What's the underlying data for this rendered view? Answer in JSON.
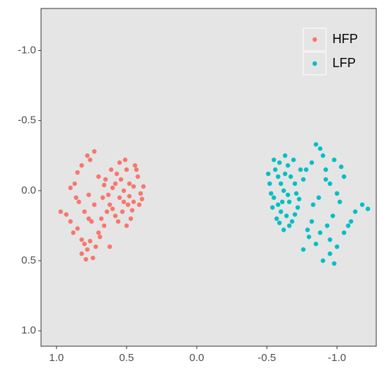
{
  "chart_data": {
    "type": "scatter",
    "xlim": [
      1.11,
      -1.28
    ],
    "ylim": [
      1.11,
      -1.3
    ],
    "xticks": [
      {
        "value": 1,
        "label": "1.0"
      },
      0.5,
      {
        "value": 0,
        "label": "0.0"
      },
      -0.5,
      {
        "value": -1,
        "label": "-1.0"
      }
    ],
    "yticks": [
      {
        "value": -1,
        "label": "-1.0"
      },
      -0.5,
      {
        "value": 0,
        "label": "0.0"
      },
      0.5,
      {
        "value": 1,
        "label": "1.0"
      }
    ],
    "legend": "top-right",
    "series": [
      {
        "name": "HFP",
        "color": "#F8766D",
        "x": [
          0.52,
          0.48,
          0.55,
          0.6,
          0.45,
          0.5,
          0.57,
          0.62,
          0.42,
          0.4,
          0.65,
          0.53,
          0.47,
          0.58,
          0.63,
          0.44,
          0.51,
          0.55,
          0.38,
          0.67,
          0.6,
          0.49,
          0.54,
          0.46,
          0.41,
          0.56,
          0.5,
          0.61,
          0.43,
          0.66,
          0.52,
          0.58,
          0.48,
          0.45,
          0.64,
          0.39,
          0.97,
          0.93,
          0.9,
          0.88,
          0.85,
          0.82,
          0.8,
          0.78,
          0.76,
          0.74,
          0.72,
          0.82,
          0.79,
          0.7,
          0.66,
          0.62,
          0.68,
          0.75,
          0.8,
          0.73,
          0.84,
          0.77,
          0.87,
          0.85,
          0.82,
          0.78,
          0.73,
          0.76,
          0.7,
          0.86,
          0.9,
          0.77,
          0.69
        ],
        "values": [
          0,
          -0.05,
          0.05,
          -0.02,
          0.08,
          -0.15,
          -0.12,
          0.1,
          -0.1,
          0.02,
          -0.08,
          0.15,
          0.2,
          0.18,
          0.03,
          -0.18,
          -0.22,
          -0.2,
          -0.03,
          0.05,
          0.13,
          0.1,
          -0.08,
          0.14,
          0.1,
          0.22,
          0.25,
          -0.15,
          -0.15,
          -0.04,
          0.08,
          -0.05,
          0.04,
          -0.03,
          0.15,
          0.06,
          0.15,
          0.17,
          0.22,
          0.3,
          0.27,
          0.35,
          0.38,
          0.42,
          0.36,
          0.48,
          0.4,
          0.45,
          0.49,
          0.3,
          0.25,
          0.4,
          0.2,
          0.22,
          0.15,
          0.1,
          0.08,
          0.03,
          -0.05,
          -0.13,
          -0.18,
          -0.25,
          -0.28,
          -0.22,
          -0.1,
          0.05,
          -0.02,
          0.2,
          0.33
        ]
      },
      {
        "name": "LFP",
        "color": "#00BFC4",
        "x": [
          -0.62,
          -0.58,
          -0.66,
          -0.55,
          -0.7,
          -0.6,
          -0.65,
          -0.52,
          -0.72,
          -0.57,
          -0.68,
          -0.63,
          -0.54,
          -0.74,
          -0.59,
          -0.67,
          -0.61,
          -0.56,
          -0.71,
          -0.64,
          -0.53,
          -0.69,
          -0.6,
          -0.66,
          -0.58,
          -0.73,
          -0.63,
          -0.55,
          -0.7,
          -0.62,
          -0.76,
          -0.65,
          -0.59,
          -0.51,
          -0.78,
          -0.82,
          -0.85,
          -0.88,
          -0.9,
          -0.92,
          -0.95,
          -1,
          -1.05,
          -1.02,
          -0.97,
          -0.93,
          -0.88,
          -0.85,
          -0.8,
          -0.76,
          -0.9,
          -0.95,
          -0.98,
          -1,
          -1.05,
          -1.08,
          -1.13,
          -1.18,
          -1.22,
          -1.1,
          -0.95,
          -0.83,
          -0.87,
          -0.92,
          -1.03,
          -0.98,
          -0.82,
          -0.79
        ],
        "values": [
          0,
          -0.1,
          0.08,
          0.05,
          -0.05,
          0.15,
          -0.18,
          -0.05,
          0.12,
          0.2,
          0.22,
          -0.25,
          0.12,
          -0.15,
          -0.2,
          -0.1,
          0.08,
          -0.15,
          0.02,
          0.18,
          0.02,
          -0.22,
          -0.05,
          0.25,
          0.1,
          0.06,
          -0.12,
          -0.22,
          0.17,
          0.28,
          -0.08,
          0.03,
          0.23,
          -0.12,
          -0.15,
          -0.2,
          -0.33,
          -0.3,
          -0.25,
          -0.15,
          -0.05,
          0.02,
          -0.1,
          0.08,
          0.18,
          0.25,
          0.3,
          0.38,
          0.33,
          0.42,
          0.5,
          0.45,
          0.52,
          0.4,
          0.3,
          0.25,
          0.15,
          0.1,
          0.13,
          0.22,
          0.35,
          0.1,
          0.05,
          -0.08,
          -0.17,
          -0.22,
          0.22,
          0.28
        ]
      }
    ]
  }
}
